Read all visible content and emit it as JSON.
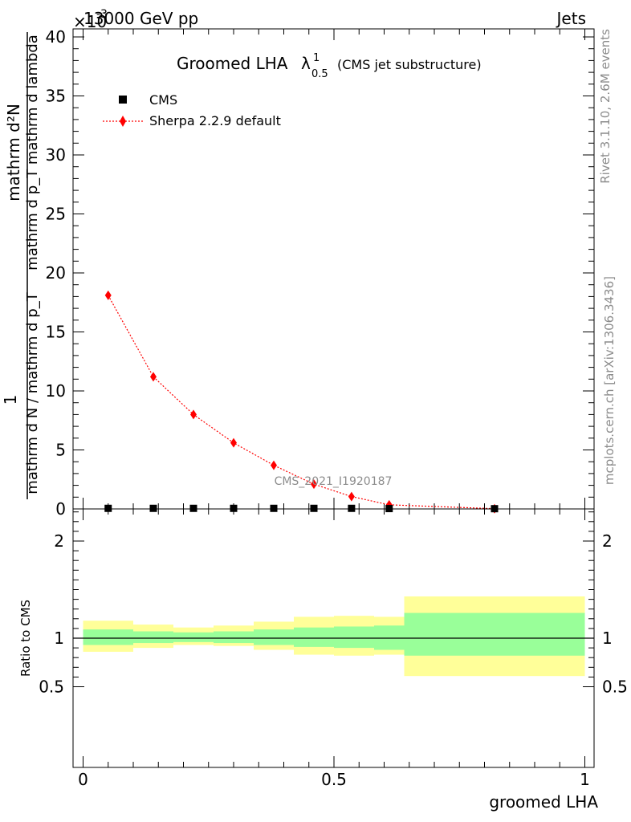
{
  "header": {
    "left": "13000 GeV pp",
    "right": "Jets",
    "exponent_label": "×10",
    "exponent_sup": "-3",
    "side_top": "Rivet 3.1.10,  2.6M events",
    "side_bottom": "mcplots.cern.ch [arXiv:1306.3436]",
    "watermark": "CMS_2021_I1920187"
  },
  "chart_data": [
    {
      "type": "line",
      "title": "Groomed LHA",
      "title_symbol": "λ",
      "title_sup": "1",
      "title_sub": "0.5",
      "subtitle": "(CMS jet substructure)",
      "ylabel_top_line": "1",
      "ylabel": "mathrm d N / mathrm d p_T mathrm d p_T mathrm d lambda",
      "ylabel_num": "mathrm d²N",
      "ylabel_den": "mathrm d N / mathrm d p_T",
      "ylabel_den2": "mathrm d p_T mathrm d lambda",
      "y_scale_note": "×10^-3",
      "ylim": [
        0,
        40
      ],
      "yticks": [
        0,
        5,
        10,
        15,
        20,
        25,
        30,
        35,
        40
      ],
      "xlim": [
        0,
        1
      ],
      "legend_position": "top-left",
      "series": [
        {
          "name": "CMS",
          "color": "#000000",
          "marker": "square",
          "x": [
            0.05,
            0.14,
            0.22,
            0.3,
            0.38,
            0.46,
            0.535,
            0.61,
            0.82
          ],
          "y": [
            0.05,
            0.05,
            0.05,
            0.05,
            0.05,
            0.05,
            0.05,
            0.03,
            0.02
          ]
        },
        {
          "name": "Sherpa 2.2.9 default",
          "color": "#ff0000",
          "marker": "diamond",
          "x": [
            0.05,
            0.14,
            0.22,
            0.3,
            0.38,
            0.46,
            0.535,
            0.61,
            0.82
          ],
          "y": [
            18.1,
            11.2,
            8.0,
            5.6,
            3.7,
            2.1,
            1.05,
            0.35,
            0.02
          ]
        }
      ]
    },
    {
      "type": "area",
      "ylabel": "Ratio to CMS",
      "xlabel": "groomed LHA",
      "ylim": [
        0.4,
        2.3
      ],
      "yticks": [
        0.5,
        1,
        2
      ],
      "ytick_labels": [
        "0.5",
        "1",
        "2"
      ],
      "xticks": [
        0,
        0.5,
        1
      ],
      "xtick_labels": [
        "0",
        "0.5",
        "1"
      ],
      "reference": 1.0,
      "bins": [
        {
          "x0": 0.0,
          "x1": 0.1,
          "inner": [
            0.93,
            1.09
          ],
          "outer": [
            0.86,
            1.18
          ]
        },
        {
          "x0": 0.1,
          "x1": 0.18,
          "inner": [
            0.95,
            1.07
          ],
          "outer": [
            0.9,
            1.14
          ]
        },
        {
          "x0": 0.18,
          "x1": 0.26,
          "inner": [
            0.96,
            1.06
          ],
          "outer": [
            0.93,
            1.11
          ]
        },
        {
          "x0": 0.26,
          "x1": 0.34,
          "inner": [
            0.95,
            1.07
          ],
          "outer": [
            0.92,
            1.13
          ]
        },
        {
          "x0": 0.34,
          "x1": 0.42,
          "inner": [
            0.93,
            1.09
          ],
          "outer": [
            0.88,
            1.17
          ]
        },
        {
          "x0": 0.42,
          "x1": 0.5,
          "inner": [
            0.91,
            1.11
          ],
          "outer": [
            0.83,
            1.22
          ]
        },
        {
          "x0": 0.5,
          "x1": 0.58,
          "inner": [
            0.9,
            1.12
          ],
          "outer": [
            0.82,
            1.23
          ]
        },
        {
          "x0": 0.58,
          "x1": 0.64,
          "inner": [
            0.88,
            1.13
          ],
          "outer": [
            0.83,
            1.22
          ]
        },
        {
          "x0": 0.64,
          "x1": 1.0,
          "inner": [
            0.82,
            1.26
          ],
          "outer": [
            0.61,
            1.43
          ]
        }
      ],
      "colors": {
        "inner": "#99ff99",
        "outer": "#ffff99",
        "line": "#000000"
      }
    }
  ]
}
